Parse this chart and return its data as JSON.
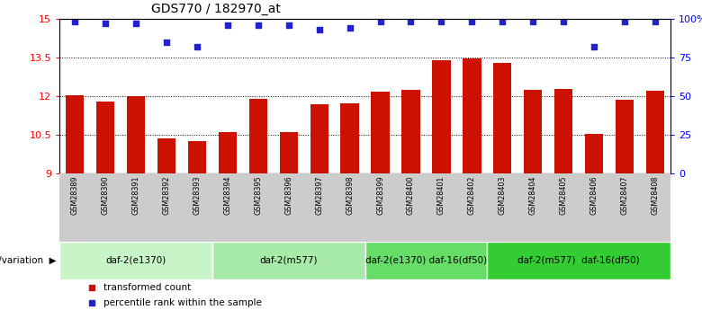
{
  "title": "GDS770 / 182970_at",
  "samples": [
    "GSM28389",
    "GSM28390",
    "GSM28391",
    "GSM28392",
    "GSM28393",
    "GSM28394",
    "GSM28395",
    "GSM28396",
    "GSM28397",
    "GSM28398",
    "GSM28399",
    "GSM28400",
    "GSM28401",
    "GSM28402",
    "GSM28403",
    "GSM28404",
    "GSM28405",
    "GSM28406",
    "GSM28407",
    "GSM28408"
  ],
  "bar_values": [
    12.05,
    11.78,
    12.0,
    10.38,
    10.25,
    10.6,
    11.9,
    10.6,
    11.68,
    11.72,
    12.18,
    12.25,
    13.4,
    13.45,
    13.3,
    12.25,
    12.28,
    10.55,
    11.85,
    12.2
  ],
  "percentile_values": [
    98,
    97,
    97,
    85,
    82,
    96,
    96,
    96,
    93,
    94,
    98,
    98,
    98,
    98,
    98,
    98,
    98,
    82,
    98,
    98
  ],
  "bar_color": "#cc1100",
  "dot_color": "#2222cc",
  "ylim_left": [
    9,
    15
  ],
  "ylim_right": [
    0,
    100
  ],
  "yticks_left": [
    9,
    10.5,
    12,
    13.5,
    15
  ],
  "yticks_right": [
    0,
    25,
    50,
    75,
    100
  ],
  "ytick_labels_right": [
    "0",
    "25",
    "50",
    "75",
    "100%"
  ],
  "dotted_lines": [
    10.5,
    12,
    13.5
  ],
  "groups": [
    {
      "label": "daf-2(e1370)",
      "start": 0,
      "end": 5,
      "color": "#c8f5c8"
    },
    {
      "label": "daf-2(m577)",
      "start": 5,
      "end": 10,
      "color": "#a8eba8"
    },
    {
      "label": "daf-2(e1370) daf-16(df50)",
      "start": 10,
      "end": 14,
      "color": "#66dd66"
    },
    {
      "label": "daf-2(m577)  daf-16(df50)",
      "start": 14,
      "end": 20,
      "color": "#33cc33"
    }
  ],
  "legend_bar_label": "transformed count",
  "legend_dot_label": "percentile rank within the sample",
  "genotype_label": "genotype/variation",
  "background_color": "#ffffff",
  "xtick_bg": "#cccccc"
}
